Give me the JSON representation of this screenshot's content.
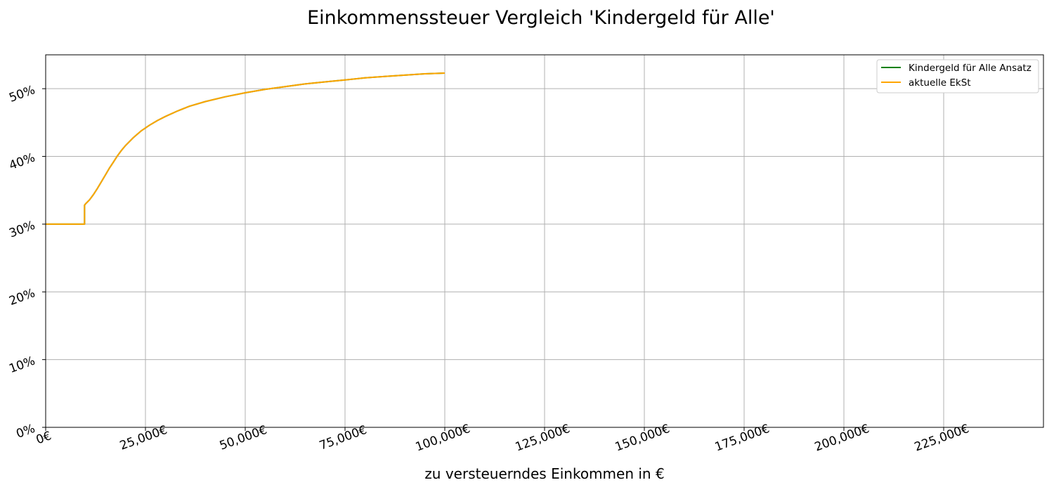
{
  "chart_data": {
    "type": "line",
    "title": "Einkommenssteuer Vergleich 'Kindergeld für Alle'",
    "xlabel": "zu versteuerndes Einkommen in €",
    "ylabel": "",
    "xlim": [
      0,
      250000
    ],
    "ylim": [
      0,
      55
    ],
    "x_ticks": [
      0,
      25000,
      50000,
      75000,
      100000,
      125000,
      150000,
      175000,
      200000,
      225000
    ],
    "x_tick_labels": [
      "0€",
      "25,000€",
      "50,000€",
      "75,000€",
      "100,000€",
      "125,000€",
      "150,000€",
      "175,000€",
      "200,000€",
      "225,000€"
    ],
    "y_ticks": [
      0,
      10,
      20,
      30,
      40,
      50
    ],
    "y_tick_labels": [
      "0%",
      "10%",
      "20%",
      "30%",
      "40%",
      "50%"
    ],
    "grid": true,
    "legend_position": "top-right",
    "series": [
      {
        "name": "Kindergeld für Alle Ansatz",
        "color": "#008000",
        "x": [
          0,
          9744,
          9744,
          10000,
          11000,
          12000,
          13000,
          14000,
          15000,
          16000,
          17000,
          18000,
          19000,
          20000,
          22000,
          24000,
          26000,
          28000,
          30000,
          33000,
          36000,
          40000,
          45000,
          50000,
          55000,
          60000,
          65000,
          70000,
          75000,
          80000,
          85000,
          90000,
          95000,
          100000
        ],
        "y": [
          30,
          30,
          32.8,
          33.0,
          33.6,
          34.4,
          35.3,
          36.3,
          37.3,
          38.3,
          39.2,
          40.1,
          40.9,
          41.6,
          42.8,
          43.8,
          44.6,
          45.3,
          45.9,
          46.7,
          47.4,
          48.1,
          48.8,
          49.4,
          49.9,
          50.3,
          50.7,
          51.0,
          51.3,
          51.6,
          51.8,
          52.0,
          52.2,
          52.3
        ]
      },
      {
        "name": "aktuelle EkSt",
        "color": "#FFA500",
        "x": [
          0,
          9744,
          9744,
          10000,
          11000,
          12000,
          13000,
          14000,
          15000,
          16000,
          17000,
          18000,
          19000,
          20000,
          22000,
          24000,
          26000,
          28000,
          30000,
          33000,
          36000,
          40000,
          45000,
          50000,
          55000,
          60000,
          65000,
          70000,
          75000,
          80000,
          85000,
          90000,
          95000,
          100000
        ],
        "y": [
          30,
          30,
          32.8,
          33.0,
          33.6,
          34.4,
          35.3,
          36.3,
          37.3,
          38.3,
          39.2,
          40.1,
          40.9,
          41.6,
          42.8,
          43.8,
          44.6,
          45.3,
          45.9,
          46.7,
          47.4,
          48.1,
          48.8,
          49.4,
          49.9,
          50.3,
          50.7,
          51.0,
          51.3,
          51.6,
          51.8,
          52.0,
          52.2,
          52.3
        ]
      }
    ]
  }
}
